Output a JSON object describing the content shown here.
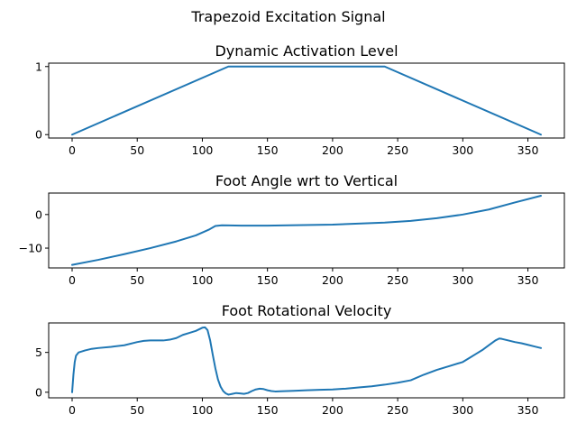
{
  "figure": {
    "suptitle": "Trapezoid Excitation Signal"
  },
  "colors": {
    "series": "#1f77b4",
    "axes": "#000000",
    "background": "#ffffff"
  },
  "chart_data": [
    {
      "type": "line",
      "title": "Dynamic Activation Level",
      "xlabel": "",
      "ylabel": "",
      "xlim": [
        -18,
        378
      ],
      "ylim": [
        -0.05,
        1.05
      ],
      "xticks": [
        0,
        50,
        100,
        150,
        200,
        250,
        300,
        350
      ],
      "yticks": [
        0,
        1
      ],
      "grid": false,
      "series": [
        {
          "x": [
            0,
            120,
            240,
            360
          ],
          "y": [
            0,
            1,
            1,
            0
          ]
        }
      ]
    },
    {
      "type": "line",
      "title": "Foot Angle wrt to Vertical",
      "xlabel": "",
      "ylabel": "",
      "xlim": [
        -18,
        378
      ],
      "ylim": [
        -15.9,
        6.4
      ],
      "xticks": [
        0,
        50,
        100,
        150,
        200,
        250,
        300,
        350
      ],
      "yticks": [
        -10,
        0
      ],
      "grid": false,
      "series": [
        {
          "x": [
            0,
            20,
            40,
            60,
            80,
            95,
            105,
            110,
            115,
            130,
            150,
            200,
            240,
            260,
            280,
            300,
            320,
            340,
            360
          ],
          "y": [
            -15,
            -13.5,
            -11.8,
            -10,
            -8,
            -6.2,
            -4.5,
            -3.4,
            -3.2,
            -3.3,
            -3.3,
            -3.0,
            -2.4,
            -1.9,
            -1.1,
            0.0,
            1.5,
            3.6,
            5.6
          ]
        }
      ]
    },
    {
      "type": "line",
      "title": "Foot Rotational Velocity",
      "xlabel": "",
      "ylabel": "",
      "xlim": [
        -18,
        378
      ],
      "ylim": [
        -0.7,
        8.7
      ],
      "xticks": [
        0,
        50,
        100,
        150,
        200,
        250,
        300,
        350
      ],
      "yticks": [
        0,
        5
      ],
      "grid": false,
      "series": [
        {
          "x": [
            0,
            1,
            2,
            3,
            5,
            10,
            15,
            20,
            30,
            40,
            50,
            55,
            60,
            70,
            75,
            80,
            85,
            90,
            95,
            100,
            102,
            104,
            106,
            108,
            110,
            112,
            114,
            116,
            118,
            120,
            123,
            126,
            129,
            132,
            135,
            138,
            141,
            144,
            147,
            150,
            153,
            156,
            160,
            170,
            180,
            190,
            200,
            210,
            220,
            230,
            240,
            250,
            260,
            270,
            280,
            290,
            300,
            305,
            310,
            315,
            320,
            325,
            328,
            330,
            335,
            340,
            345,
            350,
            355,
            360
          ],
          "y": [
            0,
            2.2,
            3.8,
            4.6,
            5.0,
            5.25,
            5.45,
            5.55,
            5.7,
            5.9,
            6.3,
            6.45,
            6.5,
            6.5,
            6.6,
            6.8,
            7.2,
            7.45,
            7.7,
            8.1,
            8.15,
            7.8,
            6.5,
            4.7,
            3.0,
            1.6,
            0.7,
            0.15,
            -0.15,
            -0.3,
            -0.2,
            -0.1,
            -0.15,
            -0.2,
            -0.1,
            0.15,
            0.35,
            0.45,
            0.4,
            0.25,
            0.15,
            0.1,
            0.12,
            0.18,
            0.25,
            0.3,
            0.35,
            0.45,
            0.6,
            0.75,
            0.95,
            1.2,
            1.5,
            2.2,
            2.8,
            3.3,
            3.8,
            4.3,
            4.8,
            5.3,
            5.9,
            6.5,
            6.75,
            6.7,
            6.5,
            6.3,
            6.15,
            5.95,
            5.75,
            5.55
          ]
        }
      ]
    }
  ]
}
